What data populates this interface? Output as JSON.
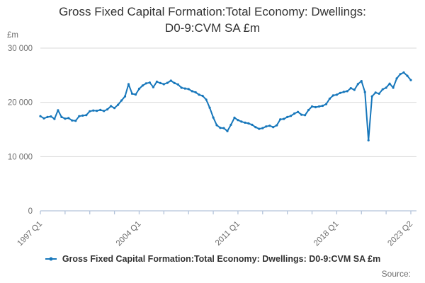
{
  "title_line1": "Gross Fixed Capital Formation:Total Economy: Dwellings:",
  "title_line2": "D0-9:CVM SA £m",
  "y_unit_label": "£m",
  "source_label": "Source:",
  "legend": {
    "label": "Gross Fixed Capital Formation:Total Economy: Dwellings: D0-9:CVM SA £m"
  },
  "colors": {
    "line": "#1777bb",
    "grid": "#d9d9d9",
    "axis": "#b3c3da",
    "tick_text": "#6e6e6e",
    "title_text": "#333333"
  },
  "chart_data": {
    "type": "line",
    "title": "Gross Fixed Capital Formation:Total Economy: Dwellings: D0-9:CVM SA £m",
    "xlabel": "",
    "ylabel": "£m",
    "ylim": [
      0,
      30000
    ],
    "grid": true,
    "legend_position": "bottom",
    "frequency": "quarterly",
    "x_start": "1997 Q1",
    "x_end": "2023 Q2",
    "y_ticks": [
      {
        "value": 0,
        "label": "0"
      },
      {
        "value": 10000,
        "label": "10 000"
      },
      {
        "value": 20000,
        "label": "20 000"
      },
      {
        "value": 30000,
        "label": "30 000"
      }
    ],
    "x_tick_interval_quarters": 7,
    "x_labeled_ticks": [
      {
        "quarter_index": 0,
        "label": "1997 Q1"
      },
      {
        "quarter_index": 28,
        "label": "2004 Q1"
      },
      {
        "quarter_index": 56,
        "label": "2011 Q1"
      },
      {
        "quarter_index": 84,
        "label": "2018 Q1"
      },
      {
        "quarter_index": 105,
        "label": "2023 Q2"
      }
    ],
    "series": [
      {
        "name": "Gross Fixed Capital Formation:Total Economy: Dwellings: D0-9:CVM SA £m",
        "values": [
          17450,
          17050,
          17300,
          17400,
          16950,
          18550,
          17300,
          17000,
          17100,
          16650,
          16600,
          17450,
          17550,
          17650,
          18350,
          18500,
          18450,
          18600,
          18400,
          18700,
          19300,
          18950,
          19550,
          20350,
          21100,
          23350,
          21600,
          21450,
          22500,
          23100,
          23500,
          23650,
          22800,
          23800,
          23550,
          23350,
          23600,
          24000,
          23550,
          23300,
          22700,
          22550,
          22450,
          22050,
          21850,
          21400,
          21200,
          20500,
          19000,
          17200,
          15800,
          15300,
          15250,
          14690,
          15860,
          17160,
          16730,
          16450,
          16250,
          16120,
          15860,
          15430,
          15120,
          15250,
          15560,
          15690,
          15430,
          15770,
          16860,
          16940,
          17290,
          17510,
          17940,
          18240,
          17720,
          17640,
          18590,
          19240,
          19110,
          19240,
          19370,
          19670,
          20670,
          21280,
          21400,
          21750,
          21930,
          22060,
          22620,
          22300,
          23360,
          23920,
          21900,
          13000,
          21100,
          21800,
          21600,
          22400,
          22700,
          23450,
          22700,
          24400,
          25200,
          25500,
          24900,
          24100
        ]
      }
    ]
  }
}
